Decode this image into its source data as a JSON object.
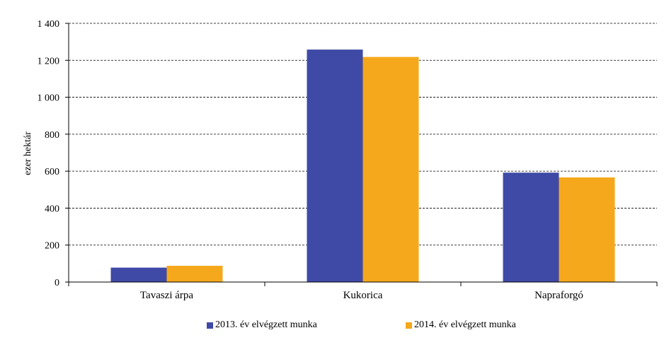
{
  "chart_data": {
    "type": "bar",
    "title": "",
    "xlabel": "",
    "ylabel": "ezer hektár",
    "ylim": [
      0,
      1400
    ],
    "yticks": [
      0,
      200,
      400,
      600,
      800,
      1000,
      1200,
      1400
    ],
    "ytick_labels": [
      "0",
      "200",
      "400",
      "600",
      "800",
      "1 000",
      "1 200",
      "1 400"
    ],
    "grid": "horizontal dashed",
    "legend_position": "bottom",
    "categories": [
      "Tavaszi árpa",
      "Kukorica",
      "Napraforgó"
    ],
    "series": [
      {
        "name": "2013. év elvégzett munka",
        "color": "#3F4AA6",
        "values": [
          78,
          1258,
          592
        ]
      },
      {
        "name": "2014. év elvégzett munka",
        "color": "#F6A81C",
        "values": [
          88,
          1218,
          566
        ]
      }
    ]
  }
}
